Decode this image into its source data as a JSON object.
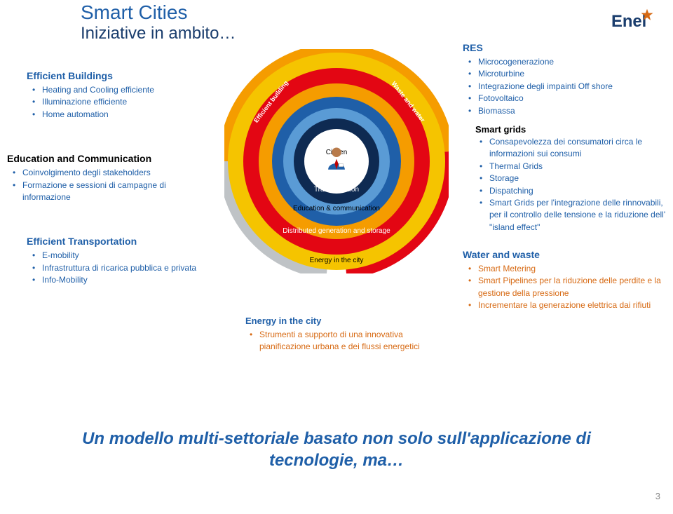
{
  "colors": {
    "titleBlue": "#1f5fa8",
    "titleDark": "#1a3d6d",
    "bulletBlue": "#1f5fa8",
    "headingBlue": "#1f5fa8",
    "orange": "#d76a14",
    "gray": "#888888",
    "logoText": "#1a3d6d",
    "logoStar": "#d76a14",
    "footerBlue": "#1f5fa8"
  },
  "title": "Smart Cities",
  "subtitle": "Iniziative in ambito…",
  "logo": "Enel",
  "leftColumn": [
    {
      "title": "Efficient Buildings",
      "titleColor": "#1f5fa8",
      "bullets": [
        {
          "text": "Heating and Cooling efficiente",
          "color": "#1f5fa8"
        },
        {
          "text": "Illuminazione efficiente",
          "color": "#1f5fa8"
        },
        {
          "text": "Home automation",
          "color": "#1f5fa8"
        }
      ],
      "indent": 28
    },
    {
      "title": "Education and Communication",
      "titleColor": "#000000",
      "bullets": [
        {
          "text": "Coinvolgimento degli stakeholders",
          "color": "#1f5fa8"
        },
        {
          "text": "Formazione e sessioni di campagne di informazione",
          "color": "#1f5fa8"
        }
      ],
      "indent": 0
    },
    {
      "title": "Efficient Transportation",
      "titleColor": "#1f5fa8",
      "bullets": [
        {
          "text": "E-mobility",
          "color": "#1f5fa8"
        },
        {
          "text": "Infrastruttura di ricarica pubblica e privata",
          "color": "#1f5fa8"
        },
        {
          "text": "Info-Mobility",
          "color": "#1f5fa8"
        }
      ],
      "indent": 28
    }
  ],
  "rightColumn": {
    "res": {
      "title": "RES",
      "titleColor": "#1f5fa8",
      "bullets": [
        {
          "text": "Microcogenerazione",
          "color": "#1f5fa8"
        },
        {
          "text": "Microturbine",
          "color": "#1f5fa8"
        },
        {
          "text": "Integrazione degli impainti Off shore",
          "color": "#1f5fa8"
        },
        {
          "text": "Fotovoltaico",
          "color": "#1f5fa8"
        },
        {
          "text": "Biomassa",
          "color": "#1f5fa8"
        }
      ]
    },
    "smartGrids": {
      "title": "Smart grids",
      "titleColor": "#000000",
      "bullets": [
        {
          "text": "Consapevolezza dei consumatori circa le informazioni sui consumi",
          "color": "#1f5fa8"
        },
        {
          "text": "Thermal Grids",
          "color": "#1f5fa8"
        },
        {
          "text": "Storage",
          "color": "#1f5fa8"
        },
        {
          "text": "Dispatching",
          "color": "#1f5fa8"
        },
        {
          "text": "Smart Grids per l'integrazione delle rinnovabili, per il controllo delle tensione e la riduzione dell' \"island effect\"",
          "color": "#1f5fa8"
        }
      ]
    },
    "waterWaste": {
      "title": "Water and waste",
      "titleColor": "#1f5fa8",
      "bullets": [
        {
          "text": "Smart Metering",
          "color": "#d76a14"
        },
        {
          "text": "Smart Pipelines per la riduzione delle perdite  e la gestione della pressione",
          "color": "#d76a14"
        },
        {
          "text": "Incrementare la generazione elettrica dai rifiuti",
          "color": "#d76a14"
        }
      ]
    }
  },
  "bottomEnergy": {
    "title": "Energy in the city",
    "titleColor": "#1f5fa8",
    "bullets": [
      {
        "text": "Strumenti a supporto di una innovativa pianificazione  urbana e dei flussi energetici",
        "color": "#d76a14"
      }
    ]
  },
  "footer": "Un modello multi-settoriale basato non solo sull'applicazione di tecnologie, ma…",
  "slideNumber": "3",
  "diagram": {
    "size": 320,
    "background": "#ffffff",
    "rings": [
      {
        "diameter": 310,
        "fill": "#f5c400",
        "label": "Energy in the city",
        "labelColor": "#000000",
        "labelTop": 296
      },
      {
        "diameter": 266,
        "fill": "#e30613",
        "label": "Distributed generation and storage",
        "labelColor": "#ffffff",
        "labelTop": 254,
        "labelWidth": 180
      },
      {
        "diameter": 222,
        "fill": "#f59c00",
        "label": "Education & communication",
        "labelColor": "#000000",
        "labelTop": 222
      },
      {
        "diameter": 184,
        "fill": "#1f5fa8",
        "label": "Transportation",
        "labelColor": "#ffffff",
        "labelTop": 195
      },
      {
        "diameter": 152,
        "fill": "#5a9bd5",
        "label": "ICT & TLC",
        "labelColor": "#ffffff",
        "labelTop": 176
      },
      {
        "diameter": 122,
        "fill": "#0e2a52",
        "label": "Smart Grid",
        "labelColor": "#ffffff",
        "labelTop": 158,
        "labelLeft": 128
      },
      {
        "diameter": 92,
        "fill": "#ffffff",
        "label": "Citizen",
        "labelColor": "#000000",
        "labelTop": 142
      }
    ],
    "arcLabels": {
      "left": "Efficient building",
      "right": "Waste and water",
      "color": "#ffffff"
    },
    "avatar": {
      "skin": "#b87a4a",
      "shirt": "#1f5fa8",
      "tie": "#c00000",
      "badge": "#ffffff"
    }
  }
}
